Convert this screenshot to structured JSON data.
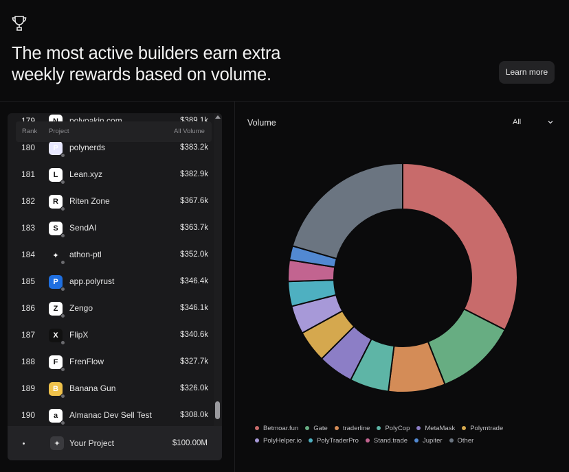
{
  "hero": {
    "icon": "trophy-icon",
    "headline": "The most active builders earn extra weekly rewards based on volume.",
    "learn_more": "Learn more"
  },
  "table": {
    "headers": {
      "rank": "Rank",
      "project": "Project",
      "volume": "All Volume"
    },
    "partial_row": {
      "rank": "179",
      "name": "polyoakin.com",
      "volume": "$389.1k"
    },
    "rows": [
      {
        "rank": "180",
        "name": "polynerds",
        "volume": "$383.2k",
        "icon": "polynerds-logo",
        "icon_text": "P"
      },
      {
        "rank": "181",
        "name": "Lean.xyz",
        "volume": "$382.9k",
        "icon": "lean-logo",
        "icon_text": "L"
      },
      {
        "rank": "182",
        "name": "Riten Zone",
        "volume": "$367.6k",
        "icon": "riten-logo",
        "icon_text": "R"
      },
      {
        "rank": "183",
        "name": "SendAI",
        "volume": "$363.7k",
        "icon": "sendai-logo",
        "icon_text": "S"
      },
      {
        "rank": "184",
        "name": "athon-ptl",
        "volume": "$352.0k",
        "icon": "sparkle-icon",
        "icon_text": "✦"
      },
      {
        "rank": "185",
        "name": "app.polyrust",
        "volume": "$346.4k",
        "icon": "polyrust-logo",
        "icon_text": "P"
      },
      {
        "rank": "186",
        "name": "Zengo",
        "volume": "$346.1k",
        "icon": "zengo-logo",
        "icon_text": "Z"
      },
      {
        "rank": "187",
        "name": "FlipX",
        "volume": "$340.6k",
        "icon": "flipx-logo",
        "icon_text": "X"
      },
      {
        "rank": "188",
        "name": "FrenFlow",
        "volume": "$327.7k",
        "icon": "frenflow-logo",
        "icon_text": "F"
      },
      {
        "rank": "189",
        "name": "Banana Gun",
        "volume": "$326.0k",
        "icon": "bananagun-logo",
        "icon_text": "B"
      },
      {
        "rank": "190",
        "name": "Almanac Dev Sell Test",
        "volume": "$308.0k",
        "icon": "almanac-logo",
        "icon_text": "a"
      }
    ],
    "your_project": {
      "rank": "•",
      "name": "Your Project",
      "volume": "$100.00M",
      "icon": "sparkle-icon",
      "icon_text": "✦"
    }
  },
  "chart_panel": {
    "title": "Volume",
    "filter": "All"
  },
  "chart_data": {
    "type": "pie",
    "donut": true,
    "series": [
      {
        "name": "Betmoar.fun",
        "value": 32.5,
        "color": "#c86b6b"
      },
      {
        "name": "Gate",
        "value": 11.5,
        "color": "#67ad82"
      },
      {
        "name": "traderline",
        "value": 8.0,
        "color": "#d48c57"
      },
      {
        "name": "PolyCop",
        "value": 5.5,
        "color": "#5eb5a6"
      },
      {
        "name": "MetaMask",
        "value": 5.0,
        "color": "#8c7ec6"
      },
      {
        "name": "Polymtrade",
        "value": 4.5,
        "color": "#d5a84e"
      },
      {
        "name": "PolyHelper.io",
        "value": 4.0,
        "color": "#a799d8"
      },
      {
        "name": "PolyTraderPro",
        "value": 3.5,
        "color": "#4eb0c1"
      },
      {
        "name": "Stand.trade",
        "value": 3.0,
        "color": "#c26490"
      },
      {
        "name": "Jupiter",
        "value": 2.0,
        "color": "#5289d2"
      },
      {
        "name": "Other",
        "value": 20.5,
        "color": "#6b7581"
      }
    ]
  }
}
